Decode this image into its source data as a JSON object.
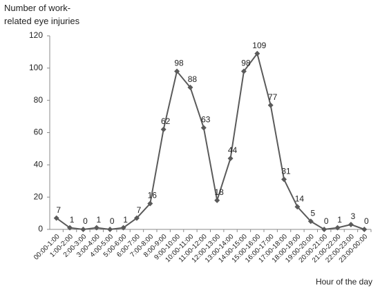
{
  "chart_data": {
    "type": "line",
    "y_label": "Number of work-related eye injuries",
    "x_label": "Hour of the day",
    "categories": [
      "00:00-1:00",
      "1:00-2:00",
      "2:00-3:00",
      "3:00-4:00",
      "4:00-5:00",
      "5:00-6:00",
      "6:00-7:00",
      "7:00-8:00",
      "8:00-9:00",
      "9:00-10:00",
      "10:00-11:00",
      "11:00-12:00",
      "12:00-13:00",
      "13:00-14:00",
      "14:00-15:00",
      "15:00-16:00",
      "16:00-17:00",
      "17:00-18:00",
      "18:00-19:00",
      "19:00-20:00",
      "20:00-21:00",
      "21:00-22:00",
      "22:00-23:00",
      "23:00-00:00"
    ],
    "values": [
      7,
      1,
      0,
      1,
      0,
      1,
      7,
      16,
      62,
      98,
      88,
      63,
      18,
      44,
      98,
      109,
      77,
      31,
      14,
      5,
      0,
      1,
      3,
      0
    ],
    "color": "#5a5a5a",
    "ylim": [
      0,
      120
    ],
    "yticks": [
      0,
      20,
      40,
      60,
      80,
      100,
      120
    ],
    "grid": false
  }
}
